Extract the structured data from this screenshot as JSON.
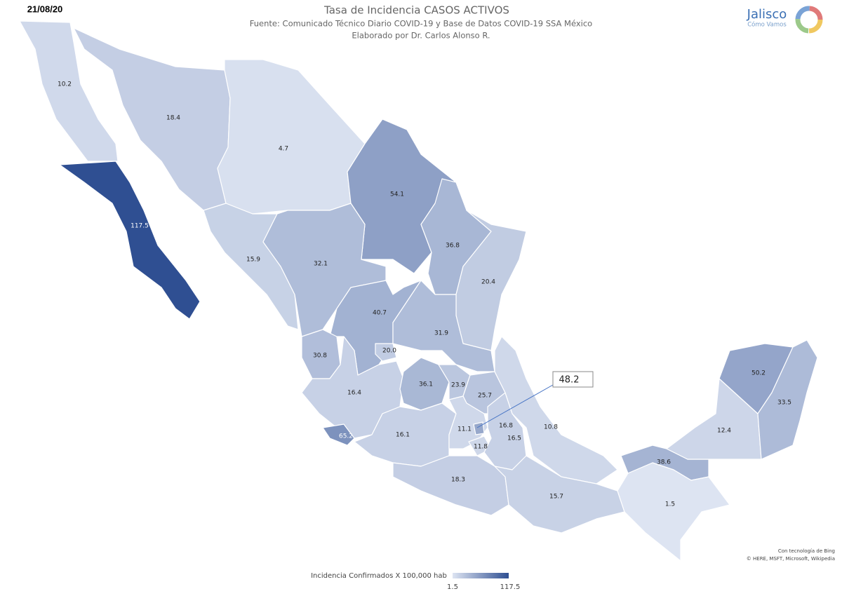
{
  "chart_data": {
    "type": "choropleth",
    "date": "21/08/20",
    "title": "Tasa de Incidencia CASOS ACTIVOS",
    "subtitle": [
      "Fuente: Comunicado Técnico Diario COVID-19 y Base de Datos COVID-19 SSA México",
      "Elaborado por Dr. Carlos Alonso R."
    ],
    "logo": {
      "name": "Jalisco",
      "tagline": "Cómo Vamos"
    },
    "values": [
      10.2,
      117.5,
      18.4,
      4.7,
      54.1,
      36.8,
      20.4,
      15.9,
      32.1,
      40.7,
      31.9,
      20.0,
      30.8,
      16.4,
      65.2,
      36.1,
      23.9,
      25.7,
      16.1,
      11.1,
      48.2,
      11.8,
      16.8,
      16.5,
      10.8,
      18.3,
      15.7,
      38.6,
      1.5,
      12.4,
      50.2,
      33.5
    ],
    "value_labels": [
      "10.2",
      "117.5",
      "18.4",
      "4.7",
      "54.1",
      "36.8",
      "20.4",
      "15.9",
      "32.1",
      "40.7",
      "31.9",
      "20.0",
      "30.8",
      "16.4",
      "65.2",
      "36.1",
      "23.9",
      "25.7",
      "16.1",
      "11.1",
      "48.2",
      "11.8",
      "16.8",
      "16.5",
      "10.8",
      "18.3",
      "15.7",
      "38.6",
      "1.5",
      "12.4",
      "50.2",
      "33.5"
    ],
    "clim": [
      1.5,
      117.5
    ],
    "colors": [
      "#dde4f2",
      "#2f4f92"
    ],
    "legend_title": "Incidencia Confirmados X 100,000 hab",
    "credits": [
      "Con tecnología de Bing",
      "© HERE, MSFT, Microsoft, Wikipedia"
    ]
  }
}
